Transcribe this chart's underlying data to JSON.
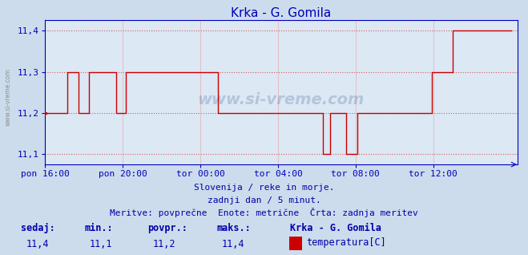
{
  "title": "Krka - G. Gomila",
  "bg_color": "#ccdcec",
  "plot_bg_color": "#dce8f4",
  "line_color": "#cc0000",
  "grid_color": "#e8a0a0",
  "axis_color": "#0000bb",
  "text_color": "#0000aa",
  "ylim": [
    11.075,
    11.425
  ],
  "yticks": [
    11.1,
    11.2,
    11.3,
    11.4
  ],
  "xlim": [
    0,
    288
  ],
  "xtick_positions": [
    0,
    48,
    96,
    144,
    192,
    240
  ],
  "xtick_labels": [
    "pon 16:00",
    "pon 20:00",
    "tor 00:00",
    "tor 04:00",
    "tor 08:00",
    "tor 12:00"
  ],
  "subtitle1": "Slovenija / reke in morje.",
  "subtitle2": "zadnji dan / 5 minut.",
  "subtitle3": "Meritve: povprečne  Enote: metrične  Črta: zadnja meritev",
  "legend_title": "Krka - G. Gomila",
  "legend_label": "temperatura[C]",
  "stats_labels": [
    "sedaj:",
    "min.:",
    "povpr.:",
    "maks.:"
  ],
  "stats_values": [
    "11,4",
    "11,1",
    "11,2",
    "11,4"
  ],
  "watermark": "www.si-vreme.com",
  "font_size_title": 11,
  "font_size_axis": 8,
  "font_size_sub": 8,
  "font_size_stats": 8.5
}
